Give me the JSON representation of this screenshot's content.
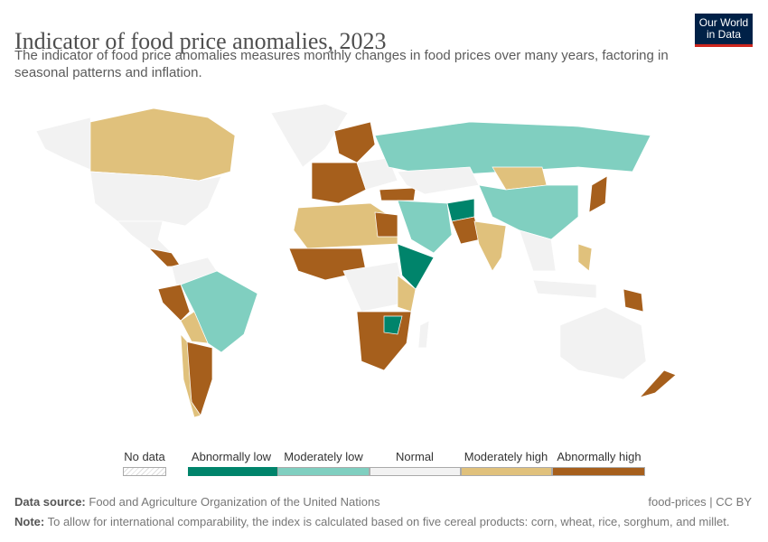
{
  "header": {
    "title": "Indicator of food price anomalies, 2023",
    "subtitle": "The indicator of food price anomalies measures monthly changes in food prices over many years, factoring in seasonal patterns and inflation.",
    "logo_text": "Our World in Data"
  },
  "colors": {
    "no_data": "#e8e8e8",
    "abnormally_low": "#00846b",
    "moderately_low": "#80cfc0",
    "normal": "#f2f2f2",
    "moderately_high": "#e0c17c",
    "abnormally_high": "#a65f1c"
  },
  "legend": {
    "items": [
      {
        "label": "No data",
        "key": "no_data"
      },
      {
        "label": "Abnormally low",
        "key": "abnormally_low"
      },
      {
        "label": "Moderately low",
        "key": "moderately_low"
      },
      {
        "label": "Normal",
        "key": "normal"
      },
      {
        "label": "Moderately high",
        "key": "moderately_high"
      },
      {
        "label": "Abnormally high",
        "key": "abnormally_high"
      }
    ]
  },
  "footer": {
    "source_label": "Data source:",
    "source": "Food and Agriculture Organization of the United Nations",
    "license": "food-prices | CC BY",
    "note_label": "Note:",
    "note": "To allow for international comparability, the index is calculated based on five cereal products: corn, wheat, rice, sorghum, and millet."
  }
}
